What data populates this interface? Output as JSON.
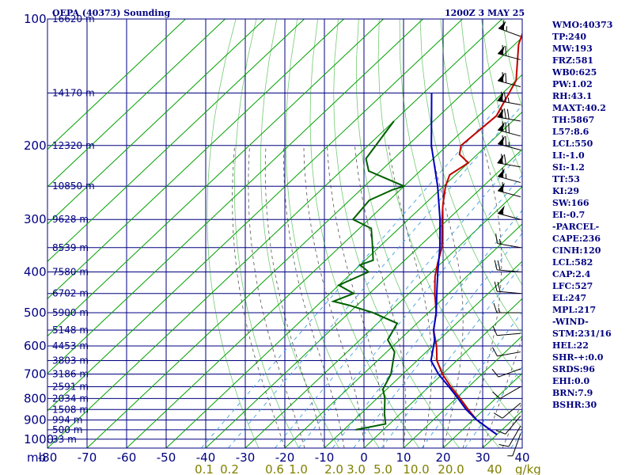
{
  "title": "OEPA (40373) Sounding",
  "time": "1200Z  3 MAY 25",
  "params": [
    "WMO:40373",
    "TP:240",
    "MW:193",
    "FRZ:581",
    "WB0:625",
    "PW:1.02",
    "RH:43.1",
    "MAXT:40.2",
    "TH:5867",
    "L57:8.6",
    "LCL:550",
    "LI:-1.0",
    "SI:-1.2",
    "TT:53",
    "KI:29",
    "SW:166",
    "EI:-0.7",
    "-PARCEL-",
    "CAPE:236",
    "CINH:120",
    "LCL:582",
    "CAP:2.4",
    "LFC:527",
    "EL:247",
    "MPL:217",
    "-WIND-",
    "STM:231/16",
    "HEL:22",
    "SHR-+:0.0",
    "SRDS:96",
    "EHI:0.0",
    "BRN:7.9",
    "BSHR:30"
  ],
  "colors": {
    "frame": "#000080",
    "temperature": "#c00000",
    "dewpoint": "#006000",
    "parcel": "#0000c0",
    "dry_adiabat": "#00a000",
    "moist_adiabat": "#404040",
    "mixing_ratio": "#40a0e0",
    "mixing_label": "#808000",
    "wind": "#000000"
  },
  "chart_data": {
    "type": "line",
    "skew": "skew-T log-p",
    "x_unit_label": "mb",
    "x_ticks": [
      "-80",
      "-70",
      "-60",
      "-50",
      "-40",
      "-30",
      "-20",
      "-10",
      "0",
      "10",
      "20",
      "30",
      "40"
    ],
    "y_ticks": [
      "100",
      "200",
      "300",
      "400",
      "500",
      "600",
      "700",
      "800",
      "900",
      "1000"
    ],
    "p_range": [
      100,
      1050
    ],
    "t_range_at_bottom": [
      -80,
      40
    ],
    "mixing_ratio_labels": [
      "0.1",
      "0.2",
      "0.6",
      "1.0",
      "2.0",
      "3.0",
      "5.0",
      "10.0",
      "20.0",
      "40"
    ],
    "mixing_ratio_unit": "g/kg",
    "height_labels": [
      {
        "p": 100,
        "text": "16620 m"
      },
      {
        "p": 150,
        "text": "14170 m"
      },
      {
        "p": 200,
        "text": "12320 m"
      },
      {
        "p": 250,
        "text": "10850 m"
      },
      {
        "p": 300,
        "text": "9628 m"
      },
      {
        "p": 350,
        "text": "8539 m"
      },
      {
        "p": 400,
        "text": "7580 m"
      },
      {
        "p": 450,
        "text": "6702 m"
      },
      {
        "p": 500,
        "text": "5900 m"
      },
      {
        "p": 550,
        "text": "5148 m"
      },
      {
        "p": 600,
        "text": "4453 m"
      },
      {
        "p": 650,
        "text": "3803 m"
      },
      {
        "p": 700,
        "text": "3186 m"
      },
      {
        "p": 750,
        "text": "2591 m"
      },
      {
        "p": 800,
        "text": "2034 m"
      },
      {
        "p": 850,
        "text": "1508 m"
      },
      {
        "p": 900,
        "text": "994 m"
      },
      {
        "p": 950,
        "text": "500 m"
      },
      {
        "p": 1000,
        "text": "33 m"
      }
    ],
    "series": [
      {
        "id": "temperature",
        "points": [
          [
            100,
            -73.5
          ],
          [
            115,
            -69
          ],
          [
            140,
            -60
          ],
          [
            170,
            -55.5
          ],
          [
            200,
            -56.5
          ],
          [
            210,
            -54.5
          ],
          [
            220,
            -50
          ],
          [
            235,
            -51.5
          ],
          [
            250,
            -49.5
          ],
          [
            275,
            -45.5
          ],
          [
            300,
            -41.5
          ],
          [
            350,
            -34
          ],
          [
            380,
            -31
          ],
          [
            410,
            -28
          ],
          [
            450,
            -23.5
          ],
          [
            500,
            -18
          ],
          [
            550,
            -14
          ],
          [
            600,
            -9
          ],
          [
            650,
            -5
          ],
          [
            700,
            0
          ],
          [
            750,
            5.5
          ],
          [
            800,
            11
          ],
          [
            850,
            16
          ],
          [
            900,
            21
          ],
          [
            950,
            27
          ],
          [
            975,
            30
          ]
        ]
      },
      {
        "id": "dewpoint",
        "points": [
          [
            175,
            -80
          ],
          [
            215,
            -77
          ],
          [
            230,
            -73
          ],
          [
            250,
            -60
          ],
          [
            255,
            -62
          ],
          [
            270,
            -65
          ],
          [
            300,
            -64
          ],
          [
            315,
            -57
          ],
          [
            340,
            -53
          ],
          [
            375,
            -48
          ],
          [
            385,
            -50
          ],
          [
            400,
            -46
          ],
          [
            430,
            -50
          ],
          [
            450,
            -44
          ],
          [
            470,
            -47
          ],
          [
            480,
            -42
          ],
          [
            500,
            -34
          ],
          [
            530,
            -25
          ],
          [
            580,
            -23
          ],
          [
            620,
            -18
          ],
          [
            700,
            -13
          ],
          [
            760,
            -11
          ],
          [
            800,
            -8
          ],
          [
            870,
            -4
          ],
          [
            920,
            -1
          ],
          [
            950,
            -7
          ]
        ]
      },
      {
        "id": "parcel",
        "points": [
          [
            150,
            -78
          ],
          [
            200,
            -64
          ],
          [
            250,
            -51.5
          ],
          [
            300,
            -42
          ],
          [
            350,
            -34.5
          ],
          [
            400,
            -28.5
          ],
          [
            450,
            -23
          ],
          [
            500,
            -18
          ],
          [
            550,
            -14
          ],
          [
            582,
            -11
          ],
          [
            650,
            -6.5
          ],
          [
            700,
            -1
          ],
          [
            750,
            5
          ],
          [
            800,
            10.5
          ],
          [
            850,
            15.5
          ],
          [
            900,
            21
          ],
          [
            950,
            27
          ],
          [
            975,
            30
          ]
        ]
      }
    ],
    "wind_barbs": [
      {
        "p": 110,
        "dir": 290,
        "spd": 65
      },
      {
        "p": 125,
        "dir": 285,
        "spd": 70
      },
      {
        "p": 145,
        "dir": 285,
        "spd": 70
      },
      {
        "p": 160,
        "dir": 280,
        "spd": 75
      },
      {
        "p": 175,
        "dir": 280,
        "spd": 80
      },
      {
        "p": 190,
        "dir": 285,
        "spd": 80
      },
      {
        "p": 205,
        "dir": 285,
        "spd": 75
      },
      {
        "p": 225,
        "dir": 280,
        "spd": 70
      },
      {
        "p": 245,
        "dir": 285,
        "spd": 65
      },
      {
        "p": 265,
        "dir": 285,
        "spd": 60
      },
      {
        "p": 300,
        "dir": 285,
        "spd": 55
      },
      {
        "p": 350,
        "dir": 280,
        "spd": 15
      },
      {
        "p": 400,
        "dir": 275,
        "spd": 20
      },
      {
        "p": 450,
        "dir": 275,
        "spd": 20
      },
      {
        "p": 500,
        "dir": 270,
        "spd": 15
      },
      {
        "p": 560,
        "dir": 265,
        "spd": 10
      },
      {
        "p": 620,
        "dir": 260,
        "spd": 10
      },
      {
        "p": 680,
        "dir": 250,
        "spd": 10
      },
      {
        "p": 750,
        "dir": 240,
        "spd": 10
      },
      {
        "p": 820,
        "dir": 230,
        "spd": 10
      },
      {
        "p": 880,
        "dir": 220,
        "spd": 10
      },
      {
        "p": 930,
        "dir": 210,
        "spd": 10
      },
      {
        "p": 970,
        "dir": 200,
        "spd": 5
      }
    ]
  }
}
